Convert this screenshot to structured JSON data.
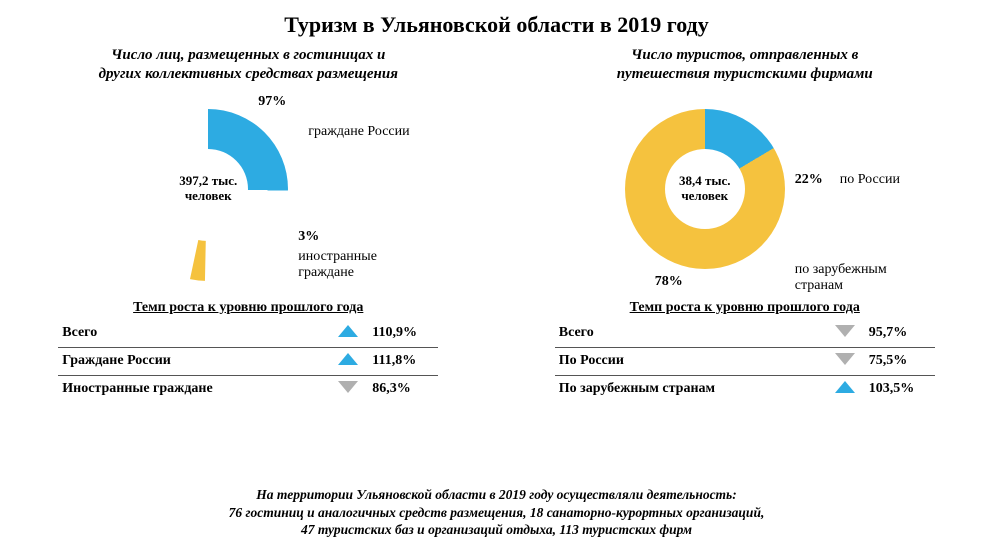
{
  "title": "Туризм в Ульяновской области в 2019 году",
  "left": {
    "subtitle": "Число  лиц,  размещенных в гостиницах и\nдругих коллективных средствах размещения",
    "donut": {
      "type": "donut",
      "center_line1": "397,2 тыс.",
      "center_line2": "человек",
      "slices": [
        {
          "label": "граждане России",
          "pct": 97,
          "pct_label": "97%",
          "color": "#2dabe2"
        },
        {
          "label": "иностранные\nграждане",
          "pct": 3,
          "pct_label": "3%",
          "color": "#f5c23e",
          "pullout": true
        }
      ],
      "hole_color": "#ffffff",
      "background_color": "#ffffff"
    },
    "growth_title": "Темп роста к уровню прошлого года",
    "growth_rows": [
      {
        "label": "Всего",
        "value": "110,9%",
        "direction": "up",
        "color": "#2dabe2"
      },
      {
        "label": "Граждане России",
        "value": "111,8%",
        "direction": "up",
        "color": "#2dabe2"
      },
      {
        "label": "Иностранные граждане",
        "value": "86,3%",
        "direction": "down",
        "color": "#b0b0b0"
      }
    ]
  },
  "right": {
    "subtitle": "Число туристов, отправленных  в\nпутешествия туристскими фирмами",
    "donut": {
      "type": "donut",
      "center_line1": "38,4 тыс.",
      "center_line2": "человек",
      "slices": [
        {
          "label": "по России",
          "pct": 22,
          "pct_label": "22%",
          "color": "#2dabe2"
        },
        {
          "label": "по зарубежным странам",
          "pct": 78,
          "pct_label": "78%",
          "color": "#f5c23e"
        }
      ],
      "hole_color": "#ffffff",
      "background_color": "#ffffff"
    },
    "growth_title": "Темп роста к уровню прошлого года",
    "growth_rows": [
      {
        "label": "Всего",
        "value": "95,7%",
        "direction": "down",
        "color": "#b0b0b0"
      },
      {
        "label": "По  России",
        "value": "75,5%",
        "direction": "down",
        "color": "#b0b0b0"
      },
      {
        "label": "По зарубежным странам",
        "value": "103,5%",
        "direction": "up",
        "color": "#2dabe2"
      }
    ]
  },
  "footer": "На территории Ульяновской области в 2019 году  осуществляли деятельность:\n76  гостиниц  и аналогичных средств размещения, 18 санаторно-курортных организаций,\n47 туристских баз и организаций отдыха, 113 туристских фирм",
  "style": {
    "title_fontsize": 22,
    "subtitle_fontsize": 15,
    "label_fontsize": 14,
    "footer_fontsize": 13.5,
    "text_color": "#000000",
    "background_color": "#ffffff",
    "triangle_up_color": "#2dabe2",
    "triangle_down_color": "#b0b0b0",
    "row_border_color": "#555555"
  }
}
